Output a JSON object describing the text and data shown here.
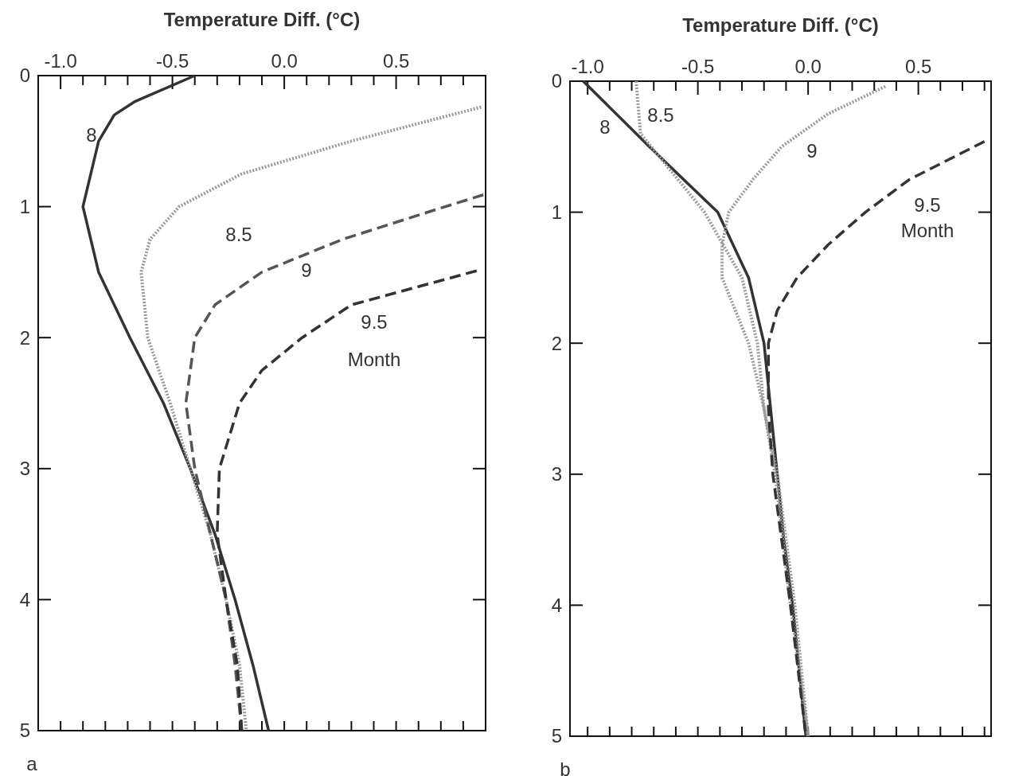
{
  "chart_data": [
    {
      "type": "line",
      "xlabel": "Temperature Diff. (°C)",
      "xlim": [
        -1.1,
        0.9
      ],
      "ylim": [
        5,
        0
      ],
      "xticks": [
        {
          "value": -1,
          "label": "-1.0"
        },
        {
          "value": -0.9,
          "label": null
        },
        {
          "value": -0.8,
          "label": null
        },
        {
          "value": -0.7,
          "label": null
        },
        {
          "value": -0.6,
          "label": null
        },
        {
          "value": -0.5,
          "label": "-0.5"
        },
        {
          "value": -0.4,
          "label": null
        },
        {
          "value": -0.3,
          "label": null
        },
        {
          "value": -0.2,
          "label": null
        },
        {
          "value": -0.1,
          "label": null
        },
        {
          "value": 0,
          "label": "0.0"
        },
        {
          "value": 0.1,
          "label": null
        },
        {
          "value": 0.2,
          "label": null
        },
        {
          "value": 0.3,
          "label": null
        },
        {
          "value": 0.4,
          "label": null
        },
        {
          "value": 0.5,
          "label": "0.5"
        },
        {
          "value": 0.6,
          "label": null
        },
        {
          "value": 0.7,
          "label": null
        },
        {
          "value": 0.8,
          "label": null
        }
      ],
      "yticks": [
        0,
        1,
        2,
        3,
        4,
        5
      ],
      "series": [
        {
          "color": "#333333",
          "line_style": "solid",
          "x": [
            -0.4,
            -0.67,
            -0.76,
            -0.83,
            -0.9,
            -0.83,
            -0.69,
            -0.54,
            -0.42,
            -0.31,
            -0.22,
            -0.14,
            -0.07
          ],
          "values": [
            0,
            0.2,
            0.3,
            0.5,
            1,
            1.5,
            2,
            2.5,
            3,
            3.5,
            4,
            4.5,
            5
          ]
        },
        {
          "color": "#999999",
          "line_style": "dotted",
          "x": [
            0.88,
            0.3,
            -0.19,
            -0.47,
            -0.6,
            -0.64,
            -0.61,
            -0.51,
            -0.42,
            -0.33,
            -0.26,
            -0.2,
            -0.17
          ],
          "values": [
            0.24,
            0.5,
            0.75,
            1,
            1.25,
            1.5,
            2,
            2.5,
            3,
            3.5,
            4,
            4.5,
            5
          ]
        },
        {
          "color": "#555555",
          "line_style": "dashed",
          "x": [
            0.89,
            0.72,
            0.26,
            -0.1,
            -0.31,
            -0.4,
            -0.44,
            -0.4,
            -0.33,
            -0.26,
            -0.22,
            -0.19
          ],
          "values": [
            0.91,
            1,
            1.25,
            1.5,
            1.75,
            2,
            2.5,
            3,
            3.5,
            4,
            4.5,
            5
          ]
        },
        {
          "color": "#333333",
          "line_style": "dashed",
          "x": [
            0.86,
            0.3,
            0.08,
            -0.1,
            -0.2,
            -0.29,
            -0.3,
            -0.26,
            -0.21,
            -0.19
          ],
          "values": [
            1.49,
            1.75,
            2,
            2.25,
            2.5,
            3,
            3.5,
            4,
            4.5,
            5
          ]
        }
      ],
      "annotations": [
        "8",
        "8.5",
        "9",
        "9.5",
        "Month",
        "a"
      ]
    },
    {
      "type": "line",
      "xlabel": "Temperature Diff. (°C)",
      "xlim": [
        -1.08,
        0.83
      ],
      "ylim": [
        5,
        0
      ],
      "xticks": [
        {
          "value": -1,
          "label": "-1.0"
        },
        {
          "value": -0.9,
          "label": null
        },
        {
          "value": -0.8,
          "label": null
        },
        {
          "value": -0.7,
          "label": null
        },
        {
          "value": -0.6,
          "label": null
        },
        {
          "value": -0.5,
          "label": "-0.5"
        },
        {
          "value": -0.4,
          "label": null
        },
        {
          "value": -0.3,
          "label": null
        },
        {
          "value": -0.2,
          "label": null
        },
        {
          "value": -0.1,
          "label": null
        },
        {
          "value": 0,
          "label": "0.0"
        },
        {
          "value": 0.1,
          "label": null
        },
        {
          "value": 0.2,
          "label": null
        },
        {
          "value": 0.3,
          "label": null
        },
        {
          "value": 0.4,
          "label": null
        },
        {
          "value": 0.5,
          "label": "0.5"
        },
        {
          "value": 0.6,
          "label": null
        },
        {
          "value": 0.7,
          "label": null
        },
        {
          "value": 0.8,
          "label": null
        }
      ],
      "yticks": [
        0,
        1,
        2,
        3,
        4,
        5
      ],
      "series": [
        {
          "color": "#333333",
          "line_style": "solid",
          "x": [
            -1.02,
            -0.72,
            -0.41,
            -0.27,
            -0.2,
            -0.17,
            -0.14,
            -0.11,
            -0.07,
            -0.04,
            -0.01
          ],
          "values": [
            0,
            0.5,
            1,
            1.5,
            2,
            2.5,
            3,
            3.5,
            4,
            4.5,
            5
          ]
        },
        {
          "color": "#999999",
          "line_style": "dotted",
          "x": [
            -0.78,
            -0.76,
            -0.59,
            -0.47,
            -0.3,
            -0.23,
            -0.2,
            -0.15,
            -0.08,
            0
          ],
          "values": [
            0,
            0.4,
            0.75,
            1,
            1.5,
            2,
            2.5,
            3,
            4,
            5
          ]
        },
        {
          "color": "#999999",
          "line_style": "dotted",
          "x": [
            0.35,
            0.09,
            -0.12,
            -0.25,
            -0.36,
            -0.39,
            -0.39,
            -0.27,
            -0.2,
            -0.14,
            -0.06,
            0
          ],
          "values": [
            0.04,
            0.25,
            0.5,
            0.75,
            1,
            1.25,
            1.5,
            2,
            2.5,
            3,
            4,
            5
          ]
        },
        {
          "color": "#333333",
          "line_style": "dashed",
          "x": [
            0.8,
            0.46,
            0.26,
            0.09,
            -0.05,
            -0.14,
            -0.18,
            -0.18,
            -0.16,
            -0.08,
            -0.01
          ],
          "values": [
            0.46,
            0.75,
            1,
            1.25,
            1.5,
            1.75,
            2,
            2.5,
            3,
            4,
            5
          ]
        }
      ],
      "annotations": [
        "8",
        "8.5",
        "9",
        "9.5",
        "Month",
        "b"
      ]
    }
  ]
}
